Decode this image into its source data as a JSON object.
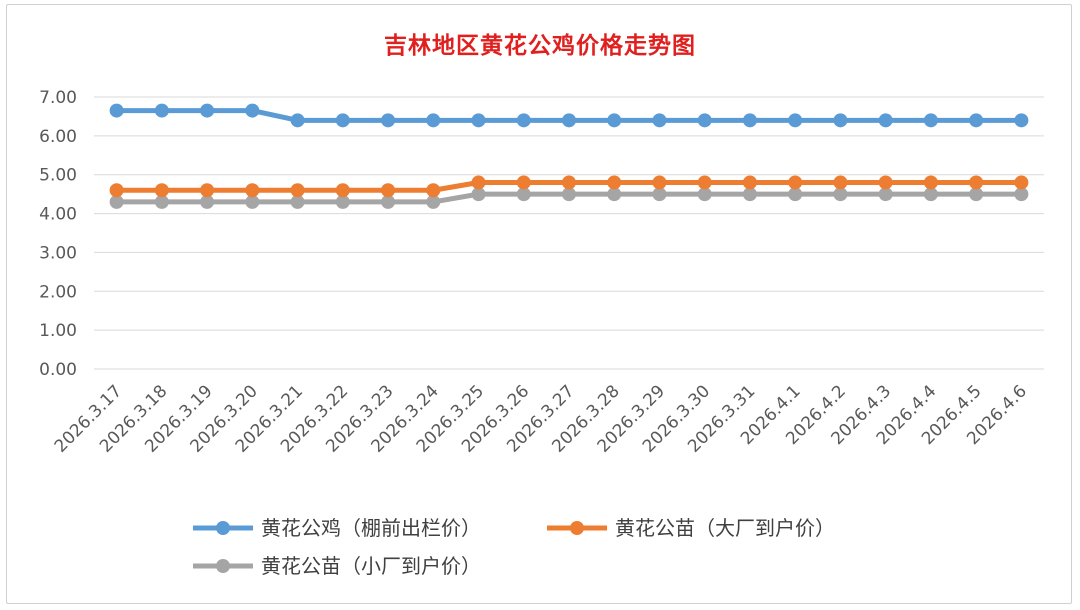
{
  "chart_data": {
    "type": "line",
    "title": "吉林地区黄花公鸡价格走势图",
    "xlabel": "",
    "ylabel": "",
    "ylim": [
      0,
      7
    ],
    "yticks": [
      "0.00",
      "1.00",
      "2.00",
      "3.00",
      "4.00",
      "5.00",
      "6.00",
      "7.00"
    ],
    "grid": true,
    "legend_position": "bottom",
    "categories": [
      "2026.3.17",
      "2026.3.18",
      "2026.3.19",
      "2026.3.20",
      "2026.3.21",
      "2026.3.22",
      "2026.3.23",
      "2026.3.24",
      "2026.3.25",
      "2026.3.26",
      "2026.3.27",
      "2026.3.28",
      "2026.3.29",
      "2026.3.30",
      "2026.3.31",
      "2026.4.1",
      "2026.4.2",
      "2026.4.3",
      "2026.4.4",
      "2026.4.5",
      "2026.4.6"
    ],
    "series": [
      {
        "name": "黄花公鸡（棚前出栏价）",
        "color": "#5b9bd5",
        "values": [
          6.65,
          6.65,
          6.65,
          6.65,
          6.4,
          6.4,
          6.4,
          6.4,
          6.4,
          6.4,
          6.4,
          6.4,
          6.4,
          6.4,
          6.4,
          6.4,
          6.4,
          6.4,
          6.4,
          6.4,
          6.4
        ]
      },
      {
        "name": "黄花公苗（大厂到户价）",
        "color": "#ed7d31",
        "values": [
          4.6,
          4.6,
          4.6,
          4.6,
          4.6,
          4.6,
          4.6,
          4.6,
          4.8,
          4.8,
          4.8,
          4.8,
          4.8,
          4.8,
          4.8,
          4.8,
          4.8,
          4.8,
          4.8,
          4.8,
          4.8
        ]
      },
      {
        "name": "黄花公苗（小厂到户价）",
        "color": "#a5a5a5",
        "values": [
          4.3,
          4.3,
          4.3,
          4.3,
          4.3,
          4.3,
          4.3,
          4.3,
          4.5,
          4.5,
          4.5,
          4.5,
          4.5,
          4.5,
          4.5,
          4.5,
          4.5,
          4.5,
          4.5,
          4.5,
          4.5
        ]
      }
    ]
  }
}
